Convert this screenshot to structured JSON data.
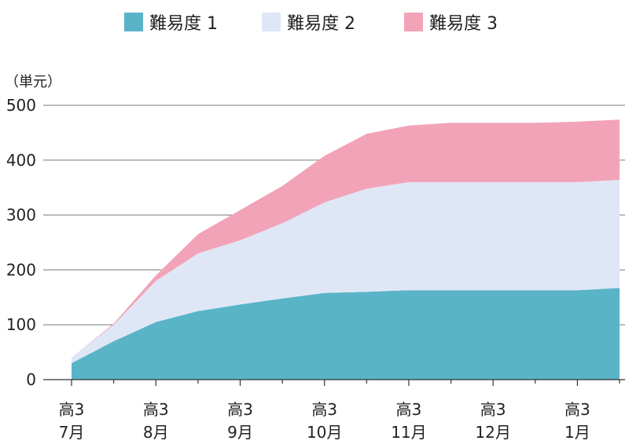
{
  "chart_data": {
    "type": "area",
    "stacked": true,
    "unit_label": "（単元）",
    "ylim": [
      0,
      500
    ],
    "yticks": [
      "0",
      "100",
      "200",
      "300",
      "400",
      "500"
    ],
    "grid": true,
    "legend_position": "top",
    "x_ticks": [
      {
        "x": 0,
        "line1": "高3",
        "line2": "7月"
      },
      {
        "x": 2,
        "line1": "高3",
        "line2": "8月"
      },
      {
        "x": 4,
        "line1": "高3",
        "line2": "9月"
      },
      {
        "x": 6,
        "line1": "高3",
        "line2": "10月"
      },
      {
        "x": 8,
        "line1": "高3",
        "line2": "11月"
      },
      {
        "x": 10,
        "line1": "高3",
        "line2": "12月"
      },
      {
        "x": 12,
        "line1": "高3",
        "line2": "1月"
      }
    ],
    "x": [
      0,
      1,
      2,
      3,
      4,
      5,
      6,
      7,
      8,
      9,
      10,
      11,
      12,
      13
    ],
    "xlim": [
      -0.5,
      13
    ],
    "series": [
      {
        "name": "難易度 1",
        "color": "#5ab4c8",
        "values": [
          30,
          70,
          105,
          125,
          137,
          148,
          158,
          160,
          163,
          163,
          163,
          163,
          163,
          167
        ]
      },
      {
        "name": "難易度 2",
        "color": "#dfe7f6",
        "values": [
          10,
          30,
          75,
          105,
          117,
          137,
          165,
          188,
          197,
          197,
          197,
          197,
          197,
          197
        ]
      },
      {
        "name": "難易度 3",
        "color": "#f2a3b8",
        "values": [
          0,
          2,
          10,
          35,
          55,
          68,
          85,
          100,
          103,
          108,
          108,
          108,
          110,
          110
        ]
      }
    ]
  }
}
